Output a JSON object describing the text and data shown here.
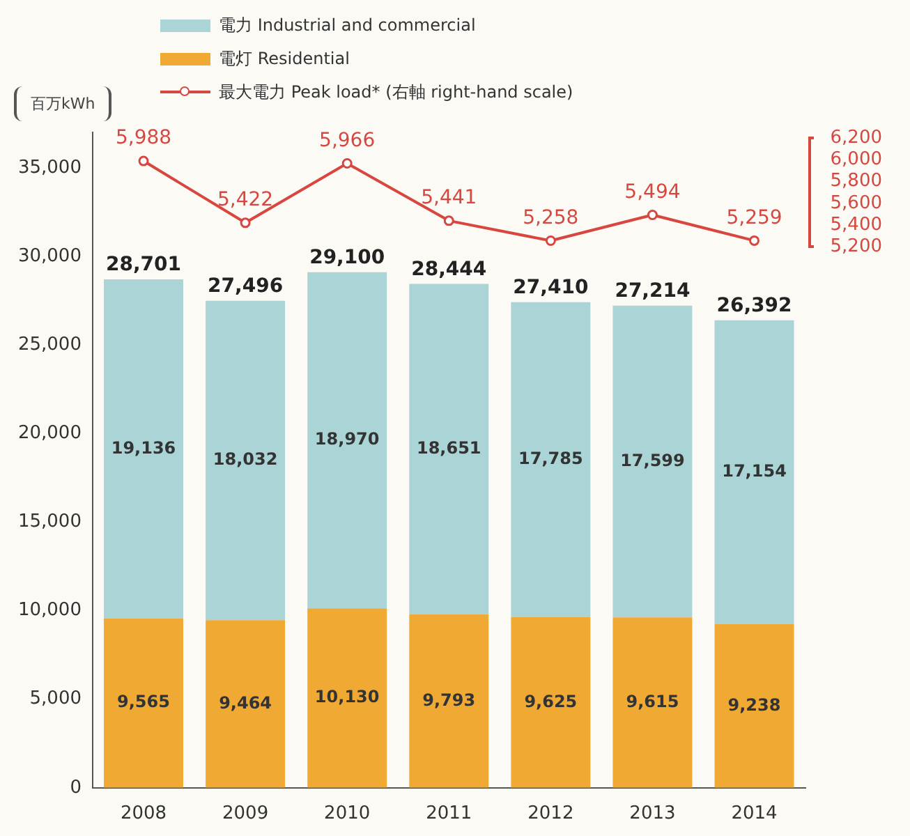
{
  "chart_data": {
    "type": "bar",
    "stacked": true,
    "ylabel": "百万kWh",
    "categories": [
      "2008",
      "2009",
      "2010",
      "2011",
      "2012",
      "2013",
      "2014"
    ],
    "series": [
      {
        "name": "電灯 Residential",
        "color": "#f0aa34",
        "values": [
          9565,
          9464,
          10130,
          9793,
          9625,
          9615,
          9238
        ],
        "value_labels": [
          "9,565",
          "9,464",
          "10,130",
          "9,793",
          "9,625",
          "9,615",
          "9,238"
        ]
      },
      {
        "name": "電力 Industrial and commercial",
        "color": "#aad4d6",
        "values": [
          19136,
          18032,
          18970,
          18651,
          17785,
          17599,
          17154
        ],
        "value_labels": [
          "19,136",
          "18,032",
          "18,970",
          "18,651",
          "17,785",
          "17,599",
          "17,154"
        ]
      },
      {
        "name": "最大電力 Peak load* (右軸 right-hand scale)",
        "type": "line",
        "axis": "y2",
        "color": "#d8473f",
        "marker": "circle",
        "values": [
          5988,
          5422,
          5966,
          5441,
          5258,
          5494,
          5259
        ],
        "value_labels": [
          "5,988",
          "5,422",
          "5,966",
          "5,441",
          "5,258",
          "5,494",
          "5,259"
        ]
      }
    ],
    "totals": [
      "28,701",
      "27,496",
      "29,100",
      "28,444",
      "27,410",
      "27,214",
      "26,392"
    ],
    "ylim": [
      0,
      37000
    ],
    "yticks": [
      0,
      {
        "value": 5000,
        "label": "5,000"
      },
      {
        "value": 10000,
        "label": "10,000"
      },
      {
        "value": 15000,
        "label": "15,000"
      },
      {
        "value": 20000,
        "label": "20,000"
      },
      {
        "value": 25000,
        "label": "25,000"
      },
      {
        "value": 30000,
        "label": "30,000"
      },
      {
        "value": 35000,
        "label": "35,000"
      }
    ],
    "y2lim": [
      250,
      6250
    ],
    "y2ticks": [
      {
        "value": 5200,
        "label": "5,200"
      },
      {
        "value": 5400,
        "label": "5,400"
      },
      {
        "value": 5600,
        "label": "5,600"
      },
      {
        "value": 5800,
        "label": "5,800"
      },
      {
        "value": 6000,
        "label": "6,000"
      },
      {
        "value": 6200,
        "label": "6,200"
      }
    ],
    "legend": "top left",
    "grid": false
  }
}
